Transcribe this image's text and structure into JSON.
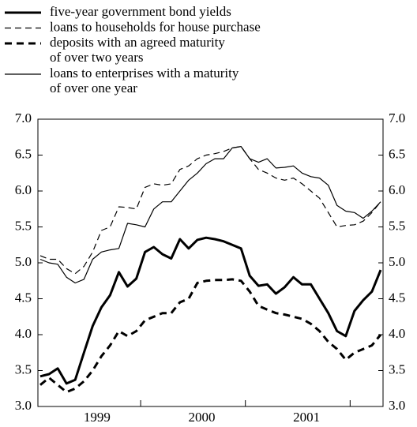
{
  "chart_data": {
    "type": "line",
    "categories": [
      null,
      null,
      null,
      null,
      null,
      null,
      null,
      "1999",
      null,
      null,
      null,
      null,
      null,
      null,
      null,
      null,
      null,
      null,
      null,
      "2000",
      null,
      null,
      null,
      null,
      null,
      null,
      null,
      null,
      null,
      null,
      null,
      "2001",
      null,
      null,
      null,
      null,
      null,
      null,
      null,
      null
    ],
    "series": [
      {
        "name": "five-year government bond yields",
        "color": "#000000",
        "width": 3,
        "dash": "none",
        "values": [
          3.42,
          3.45,
          3.53,
          3.32,
          3.37,
          3.75,
          4.12,
          4.38,
          4.55,
          4.87,
          4.67,
          4.78,
          5.15,
          5.22,
          5.12,
          5.06,
          5.33,
          5.2,
          5.32,
          5.35,
          5.33,
          5.3,
          5.25,
          5.2,
          4.82,
          4.68,
          4.7,
          4.57,
          4.66,
          4.8,
          4.7,
          4.7,
          4.5,
          4.3,
          4.05,
          3.98,
          4.33,
          4.48,
          4.6,
          4.9
        ]
      },
      {
        "name": "loans to households for house purchase",
        "color": "#000000",
        "width": 1.2,
        "dash": "8 5",
        "values": [
          5.1,
          5.05,
          5.05,
          4.92,
          4.85,
          4.95,
          5.15,
          5.45,
          5.5,
          5.78,
          5.77,
          5.75,
          6.05,
          6.1,
          6.08,
          6.1,
          6.3,
          6.35,
          6.45,
          6.5,
          6.52,
          6.55,
          6.6,
          6.62,
          6.45,
          6.3,
          6.25,
          6.18,
          6.15,
          6.18,
          6.1,
          6.0,
          5.9,
          5.7,
          5.5,
          5.52,
          5.53,
          5.58,
          5.7,
          5.85
        ]
      },
      {
        "name": "deposits with an agreed maturity\nof over two years",
        "color": "#000000",
        "width": 3,
        "dash": "9 6",
        "values": [
          3.3,
          3.4,
          3.3,
          3.2,
          3.25,
          3.35,
          3.5,
          3.7,
          3.85,
          4.05,
          3.98,
          4.05,
          4.2,
          4.25,
          4.3,
          4.3,
          4.45,
          4.5,
          4.72,
          4.75,
          4.76,
          4.76,
          4.77,
          4.75,
          4.6,
          4.4,
          4.35,
          4.3,
          4.28,
          4.25,
          4.22,
          4.15,
          4.05,
          3.9,
          3.8,
          3.65,
          3.75,
          3.8,
          3.85,
          4.0
        ]
      },
      {
        "name": "loans to enterprises with a maturity\nof over one year",
        "color": "#000000",
        "width": 1.2,
        "dash": "none",
        "values": [
          5.05,
          5.0,
          4.98,
          4.8,
          4.72,
          4.77,
          5.05,
          5.15,
          5.18,
          5.2,
          5.55,
          5.53,
          5.5,
          5.75,
          5.85,
          5.85,
          6.0,
          6.15,
          6.25,
          6.38,
          6.45,
          6.45,
          6.6,
          6.62,
          6.45,
          6.4,
          6.45,
          6.32,
          6.33,
          6.35,
          6.25,
          6.2,
          6.18,
          6.08,
          5.8,
          5.72,
          5.7,
          5.62,
          5.72,
          5.85
        ]
      }
    ],
    "ylim": [
      3.0,
      7.0
    ],
    "yticks": [
      {
        "value": 3.0,
        "label": "3.0"
      },
      {
        "value": 3.5,
        "label": "3.5"
      },
      {
        "value": 4.0,
        "label": "4.0"
      },
      {
        "value": 4.5,
        "label": "4.5"
      },
      {
        "value": 5.0,
        "label": "5.0"
      },
      {
        "value": 5.5,
        "label": "5.5"
      },
      {
        "value": 6.0,
        "label": "6.0"
      },
      {
        "value": 6.5,
        "label": "6.5"
      },
      {
        "value": 7.0,
        "label": "7.0"
      }
    ],
    "y2lim": [
      3.0,
      7.0
    ],
    "y2ticks": [
      {
        "value": 3.0,
        "label": "3.0"
      },
      {
        "value": 3.5,
        "label": "3.5"
      },
      {
        "value": 4.0,
        "label": "4.0"
      },
      {
        "value": 4.5,
        "label": "4.5"
      },
      {
        "value": 5.0,
        "label": "5.0"
      },
      {
        "value": 5.5,
        "label": "5.5"
      },
      {
        "value": 6.0,
        "label": "6.0"
      },
      {
        "value": 6.5,
        "label": "6.5"
      },
      {
        "value": 7.0,
        "label": "7.0"
      }
    ],
    "legend": "top-left",
    "grid": false
  }
}
